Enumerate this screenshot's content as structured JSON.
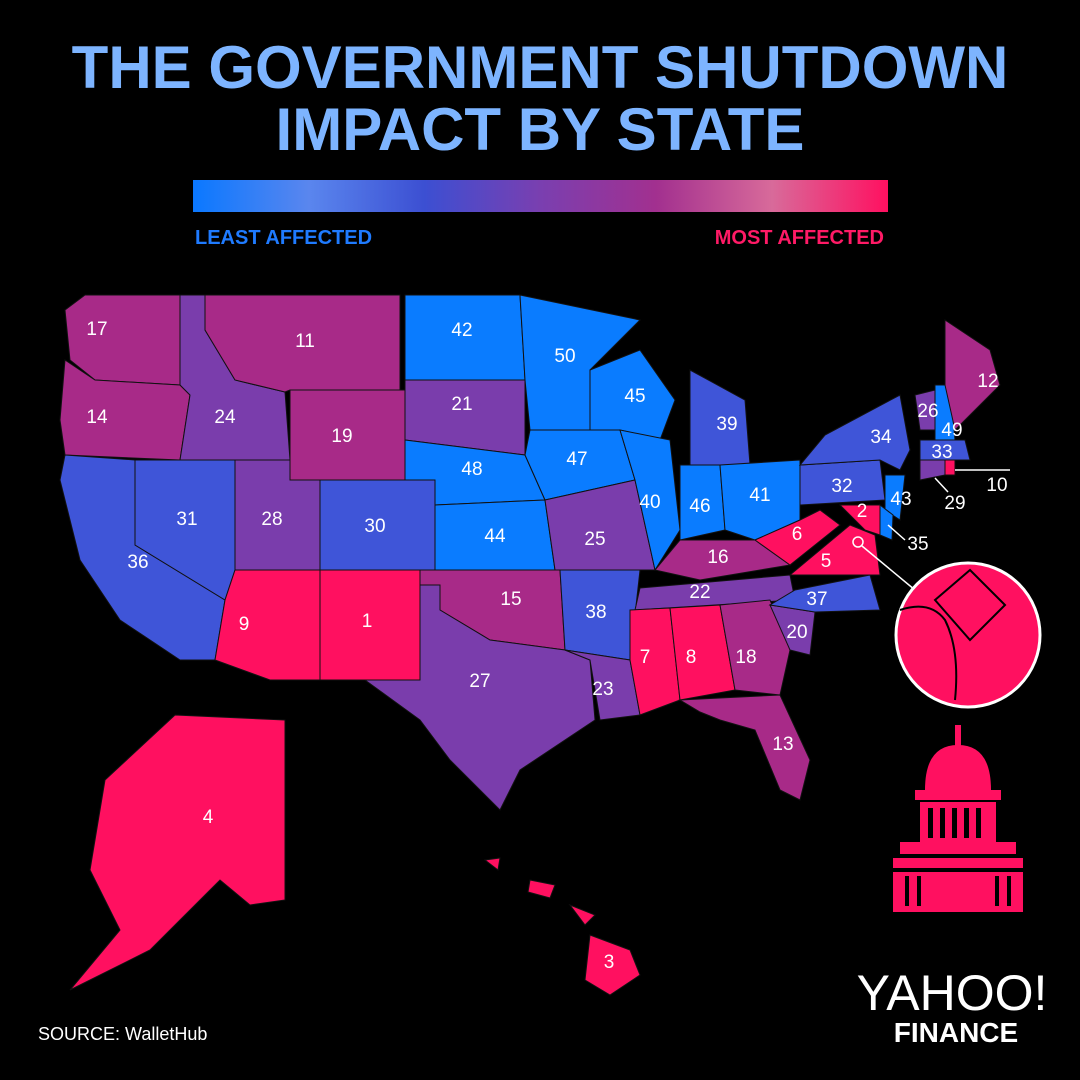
{
  "header": {
    "title_lines": [
      "THE GOVERNMENT SHUTDOWN",
      "IMPACT BY STATE"
    ]
  },
  "legend": {
    "low_label": "LEAST AFFECTED",
    "high_label": "MOST AFFECTED",
    "low_color": "#1f7bff",
    "high_color": "#ff1a66",
    "gradient": [
      "#0a78ff",
      "#5a86ee",
      "#3c4fd2",
      "#7a3fb0",
      "#a2308f",
      "#d86a9a",
      "#ff1060"
    ]
  },
  "states": [
    {
      "rank": 17,
      "color": "#a82a88"
    },
    {
      "rank": 14,
      "color": "#a82a88"
    },
    {
      "rank": 36,
      "color": "#3f55d8"
    },
    {
      "rank": 24,
      "color": "#7a3dac"
    },
    {
      "rank": 31,
      "color": "#3f55d8"
    },
    {
      "rank": 11,
      "color": "#a82a88"
    },
    {
      "rank": 19,
      "color": "#a82a88"
    },
    {
      "rank": 28,
      "color": "#7a3dac"
    },
    {
      "rank": 30,
      "color": "#3f55d8"
    },
    {
      "rank": 9,
      "color": "#ff1060"
    },
    {
      "rank": 1,
      "color": "#ff1060"
    },
    {
      "rank": 42,
      "color": "#0a7cff"
    },
    {
      "rank": 21,
      "color": "#7a3dac"
    },
    {
      "rank": 48,
      "color": "#0a7cff"
    },
    {
      "rank": 44,
      "color": "#0a7cff"
    },
    {
      "rank": 15,
      "color": "#a82a88"
    },
    {
      "rank": 27,
      "color": "#7a3dac"
    },
    {
      "rank": 50,
      "color": "#0a7cff"
    },
    {
      "rank": 47,
      "color": "#0a7cff"
    },
    {
      "rank": 25,
      "color": "#7a3dac"
    },
    {
      "rank": 38,
      "color": "#3f55d8"
    },
    {
      "rank": 23,
      "color": "#7a3dac"
    },
    {
      "rank": 45,
      "color": "#0a7cff"
    },
    {
      "rank": 40,
      "color": "#0a7cff"
    },
    {
      "rank": 39,
      "color": "#3f55d8"
    },
    {
      "rank": 46,
      "color": "#0a7cff"
    },
    {
      "rank": 41,
      "color": "#0a7cff"
    },
    {
      "rank": 16,
      "color": "#a82a88"
    },
    {
      "rank": 22,
      "color": "#7a3dac"
    },
    {
      "rank": 7,
      "color": "#ff1060"
    },
    {
      "rank": 8,
      "color": "#ff1060"
    },
    {
      "rank": 18,
      "color": "#a82a88"
    },
    {
      "rank": 13,
      "color": "#a82a88"
    },
    {
      "rank": 20,
      "color": "#7a3dac"
    },
    {
      "rank": 37,
      "color": "#3f55d8"
    },
    {
      "rank": 5,
      "color": "#ff1060"
    },
    {
      "rank": 6,
      "color": "#ff1060"
    },
    {
      "rank": 32,
      "color": "#3f55d8"
    },
    {
      "rank": 34,
      "color": "#3f55d8"
    },
    {
      "rank": 43,
      "color": "#0a7cff"
    },
    {
      "rank": 35,
      "color": "#0a7cff"
    },
    {
      "rank": 2,
      "color": "#ff1060"
    },
    {
      "rank": 26,
      "color": "#7a3dac"
    },
    {
      "rank": 49,
      "color": "#0a7cff"
    },
    {
      "rank": 12,
      "color": "#a82a88"
    },
    {
      "rank": 33,
      "color": "#3f55d8"
    },
    {
      "rank": 29,
      "color": "#7a3dac"
    },
    {
      "rank": 10,
      "color": "#ff1060"
    },
    {
      "rank": 4,
      "color": "#ff1060"
    },
    {
      "rank": 3,
      "color": "#ff1060"
    }
  ],
  "footer": {
    "source": "SOURCE: WalletHub",
    "logo_top": "YAHOO!",
    "logo_bottom": "FINANCE"
  }
}
